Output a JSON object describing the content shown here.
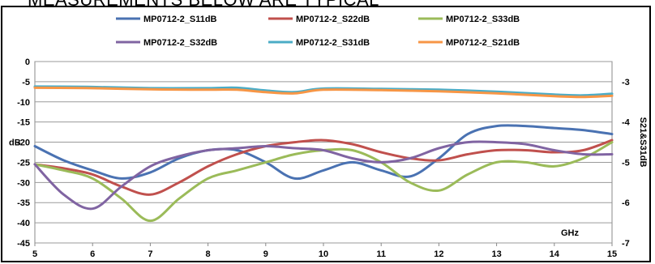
{
  "page": {
    "heading": "MEASUREMENTS BELOW ARE TYPICAL"
  },
  "chart_data": {
    "type": "line",
    "title": "",
    "xlabel": "GHz",
    "ylabel": "dB",
    "y2label": "S21&S31dB",
    "xlim": [
      5,
      15
    ],
    "ylim": [
      -45,
      0
    ],
    "y2lim": [
      -7,
      -2.5
    ],
    "x_ticks": [
      5,
      6,
      7,
      8,
      9,
      10,
      11,
      12,
      13,
      14,
      15
    ],
    "y_ticks": [
      0,
      -5,
      -10,
      -15,
      -20,
      -25,
      -30,
      -35,
      -40,
      -45
    ],
    "y2_ticks": [
      -3,
      -4,
      -5,
      -6,
      -7
    ],
    "grid": true,
    "legend_position": "top",
    "series": [
      {
        "name": "MP0712-2_S11dB",
        "color": "#4a72b2",
        "axis": "left",
        "x": [
          5,
          5.5,
          6,
          6.5,
          7,
          7.5,
          8,
          8.5,
          9,
          9.5,
          10,
          10.5,
          11,
          11.5,
          12,
          12.5,
          13,
          13.5,
          14,
          14.5,
          15
        ],
        "y": [
          -21,
          -24.5,
          -27,
          -29,
          -27.5,
          -24,
          -22,
          -22,
          -25,
          -29,
          -27,
          -25,
          -27,
          -28.5,
          -24,
          -18,
          -16,
          -16,
          -16.5,
          -17,
          -18
        ]
      },
      {
        "name": "MP0712-2_S22dB",
        "color": "#c0504d",
        "axis": "left",
        "x": [
          5,
          5.5,
          6,
          6.5,
          7,
          7.5,
          8,
          8.5,
          9,
          9.5,
          10,
          10.5,
          11,
          11.5,
          12,
          12.5,
          13,
          13.5,
          14,
          14.5,
          15
        ],
        "y": [
          -25.5,
          -26.5,
          -28,
          -31,
          -33,
          -30,
          -26,
          -23,
          -21,
          -20,
          -19.5,
          -20.5,
          -22.5,
          -24,
          -24.5,
          -23,
          -22,
          -22,
          -22.5,
          -22,
          -19.5
        ]
      },
      {
        "name": "MP0712-2_S33dB",
        "color": "#9bbb59",
        "axis": "left",
        "x": [
          5,
          5.5,
          6,
          6.5,
          7,
          7.5,
          8,
          8.5,
          9,
          9.5,
          10,
          10.5,
          11,
          11.5,
          12,
          12.5,
          13,
          13.5,
          14,
          14.5,
          15
        ],
        "y": [
          -25.5,
          -27,
          -29,
          -34,
          -39.5,
          -34,
          -29,
          -27,
          -25,
          -23,
          -22,
          -22,
          -25,
          -30,
          -32,
          -28,
          -25,
          -25,
          -26,
          -24,
          -20
        ]
      },
      {
        "name": "MP0712-2_S32dB",
        "color": "#8064a2",
        "axis": "left",
        "x": [
          5,
          5.5,
          6,
          6.5,
          7,
          7.5,
          8,
          8.5,
          9,
          9.5,
          10,
          10.5,
          11,
          11.5,
          12,
          12.5,
          13,
          13.5,
          14,
          14.5,
          15
        ],
        "y": [
          -25.5,
          -33,
          -36.5,
          -31,
          -26,
          -23.5,
          -22,
          -21.5,
          -21,
          -21.5,
          -22,
          -24,
          -25,
          -24,
          -21.5,
          -20,
          -20,
          -20.5,
          -22,
          -23,
          -23
        ]
      },
      {
        "name": "MP0712-2_S31dB",
        "color": "#4bacc6",
        "axis": "right",
        "x": [
          5,
          6,
          7,
          8,
          8.5,
          9,
          9.5,
          10,
          11,
          12,
          13,
          14,
          14.5,
          15
        ],
        "y": [
          -3.12,
          -3.13,
          -3.16,
          -3.16,
          -3.15,
          -3.22,
          -3.26,
          -3.17,
          -3.18,
          -3.2,
          -3.25,
          -3.32,
          -3.34,
          -3.3
        ]
      },
      {
        "name": "MP0712-2_S21dB",
        "color": "#f79646",
        "axis": "right",
        "x": [
          5,
          6,
          7,
          8,
          8.5,
          9,
          9.5,
          10,
          11,
          12,
          13,
          14,
          14.5,
          15
        ],
        "y": [
          -3.15,
          -3.16,
          -3.19,
          -3.2,
          -3.2,
          -3.26,
          -3.29,
          -3.2,
          -3.21,
          -3.24,
          -3.29,
          -3.36,
          -3.38,
          -3.35
        ]
      }
    ]
  }
}
